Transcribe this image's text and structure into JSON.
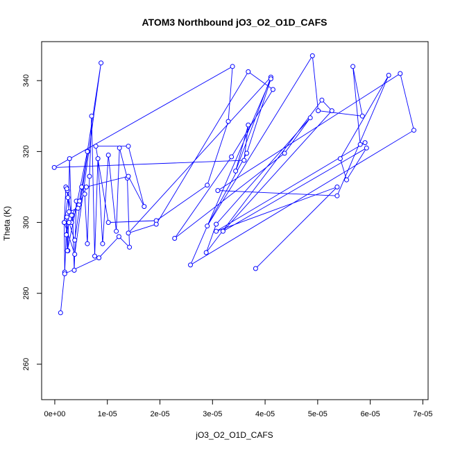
{
  "chart_data": {
    "type": "line",
    "title": "ATOM3 Northbound jO3_O2_O1D_CAFS",
    "xlabel": "jO3_O2_O1D_CAFS",
    "ylabel": "Theta (K)",
    "xlim": [
      -2.5e-06,
      7.1e-05
    ],
    "ylim": [
      250,
      351
    ],
    "x_ticks": [
      {
        "value": 0,
        "label": "0e+00"
      },
      {
        "value": 1e-05,
        "label": "1e-05"
      },
      {
        "value": 2e-05,
        "label": "2e-05"
      },
      {
        "value": 3e-05,
        "label": "3e-05"
      },
      {
        "value": 4e-05,
        "label": "4e-05"
      },
      {
        "value": 5e-05,
        "label": "5e-05"
      },
      {
        "value": 6e-05,
        "label": "6e-05"
      },
      {
        "value": 7e-05,
        "label": "7e-05"
      }
    ],
    "y_ticks": [
      {
        "value": 260,
        "label": "260"
      },
      {
        "value": 280,
        "label": "280"
      },
      {
        "value": 300,
        "label": "300"
      },
      {
        "value": 320,
        "label": "320"
      },
      {
        "value": 340,
        "label": "340"
      }
    ],
    "grid": false,
    "series_color": "#0000ff",
    "series": [
      {
        "x": [
          1.1e-06,
          1.9e-06,
          2.3e-06,
          2.5e-06,
          2.8e-06,
          3.2e-06,
          3.4e-06,
          3.7e-06,
          4.1e-06,
          4.6e-06,
          5.1e-06,
          5.7e-06,
          6.2e-06,
          6.6e-06,
          7e-06,
          7.6e-06,
          8.2e-06,
          9.1e-06,
          1.02e-05,
          1.17e-05,
          1.23e-05,
          1.38e-05,
          1.42e-05,
          1.22e-05,
          8.4e-06,
          1.9e-06,
          1.8e-06,
          2.1e-06,
          2.4e-06,
          3.2e-06,
          4.7e-06,
          6.3e-06,
          3.8e-06,
          2.7e-06,
          2.2e-06,
          2.4e-06,
          6.2e-06,
          8.8e-06,
          3.8e-06,
          1.8e-06,
          2.5e-06,
          2.3e-06,
          2.7e-06,
          4.4e-06,
          6e-06,
          1.4e-05,
          1.7e-05,
          1.4e-05,
          7.8e-06,
          1.02e-05,
          1.93e-05,
          2.9e-05,
          3.3e-05,
          3.38e-05,
          -1e-07,
          3.6e-05,
          3.68e-05,
          3.44e-05,
          4.11e-05,
          1.4e-05,
          1.93e-05,
          3.68e-05,
          4.15e-05,
          3.36e-05,
          2.28e-05,
          4.37e-05,
          4.86e-05,
          3.07e-05,
          2.88e-05,
          5.08e-05,
          5.27e-05,
          3.2e-05,
          5.93e-05,
          5.55e-05,
          5.43e-05,
          6.35e-05,
          5.37e-05,
          3.1e-05,
          6.57e-05,
          6.83e-05,
          2.58e-05,
          4.11e-05,
          3.65e-05,
          2.9e-05,
          4.9e-05,
          5.01e-05,
          5.85e-05,
          5.67e-05,
          5.81e-05,
          5.9e-05,
          3.07e-05,
          5.37e-05,
          3.82e-05
        ]
      }
    ],
    "values": [
      274.5,
      286.0,
      301.5,
      292.0,
      318.0,
      300.0,
      302.0,
      286.5,
      306.0,
      305.0,
      310.0,
      308.0,
      294.0,
      313.0,
      330.0,
      290.5,
      318.0,
      294.0,
      319.0,
      297.5,
      321.0,
      312.5,
      293.0,
      296.0,
      290.0,
      285.5,
      300.0,
      310.0,
      309.0,
      302.0,
      306.0,
      320.0,
      295.0,
      300.0,
      296.5,
      292.0,
      320.0,
      345.0,
      291.0,
      300.0,
      307.0,
      309.5,
      303.0,
      304.0,
      310.0,
      313.0,
      304.5,
      321.5,
      321.5,
      300.0,
      300.5,
      310.5,
      328.5,
      344.0,
      315.5,
      317.5,
      327.5,
      314.5,
      341.0,
      297.0,
      299.5,
      342.5,
      337.5,
      318.5,
      295.5,
      319.5,
      329.5,
      299.5,
      291.5,
      334.5,
      331.5,
      297.5,
      321.0,
      312.0,
      318.0,
      341.5,
      307.5,
      309.0,
      342.0,
      326.0,
      288.0,
      340.5,
      319.5,
      299.0,
      347.0,
      331.5,
      330.0,
      344.0,
      322.0,
      322.5,
      297.5,
      310.0,
      287.0
    ]
  }
}
